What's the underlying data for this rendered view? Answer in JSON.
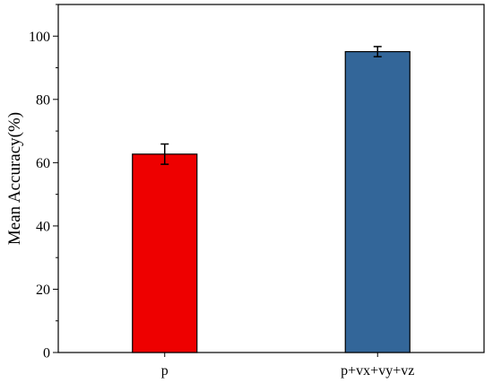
{
  "chart_data": {
    "type": "bar",
    "title": "",
    "xlabel": "",
    "ylabel": "Mean Accuracy(%)",
    "categories": [
      "p",
      "p+vx+vy+vz"
    ],
    "values": [
      62.7,
      95.1
    ],
    "errors": [
      3.2,
      1.6
    ],
    "colors": [
      "#ee0000",
      "#336699"
    ],
    "ylim": [
      0,
      110
    ],
    "yticks": [
      0,
      20,
      40,
      60,
      80,
      100
    ],
    "grid": false,
    "legend": "none"
  }
}
